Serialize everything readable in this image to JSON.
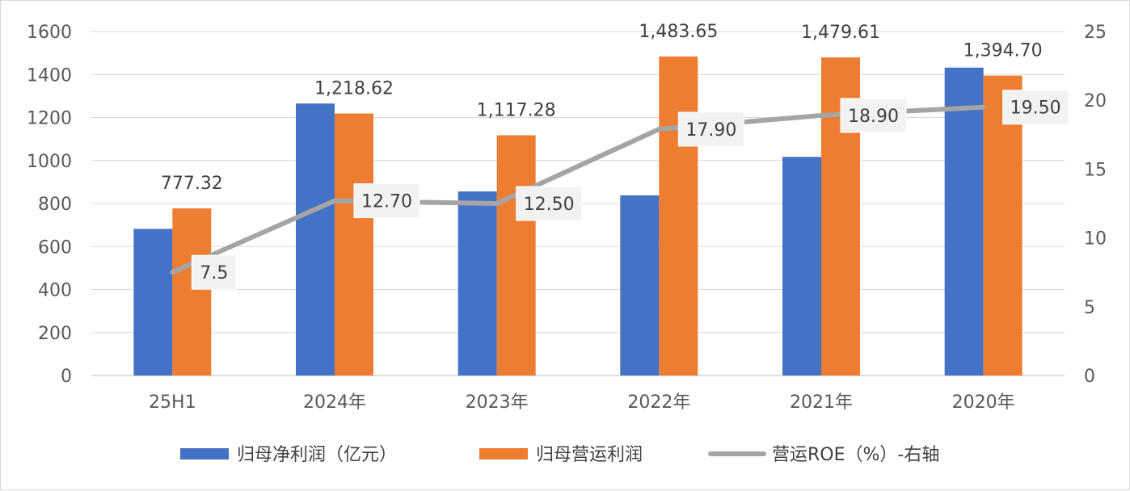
{
  "chart_data": {
    "type": "bar",
    "categories": [
      "25H1",
      "2024年",
      "2023年",
      "2022年",
      "2021年",
      "2020年"
    ],
    "series": [
      {
        "name": "归母净利润（亿元）",
        "type": "bar",
        "axis": "left",
        "color": "#4472c4",
        "values": [
          682,
          1265,
          856,
          838,
          1017,
          1432
        ]
      },
      {
        "name": "归母营运利润",
        "type": "bar",
        "axis": "left",
        "color": "#ed7d31",
        "values": [
          777.32,
          1218.62,
          1117.28,
          1483.65,
          1479.61,
          1394.7
        ],
        "labels": [
          "777.32",
          "1,218.62",
          "1,117.28",
          "1,483.65",
          "1,479.61",
          "1,394.70"
        ]
      },
      {
        "name": "营运ROE（%）-右轴",
        "type": "line",
        "axis": "right",
        "color": "#a5a5a5",
        "values": [
          7.5,
          12.7,
          12.5,
          17.9,
          18.9,
          19.5
        ],
        "labels": [
          "7.5",
          "12.70",
          "12.50",
          "17.90",
          "18.90",
          "19.50"
        ]
      }
    ],
    "y_left": {
      "min": 0,
      "max": 1600,
      "step": 200,
      "ticks": [
        "0",
        "200",
        "400",
        "600",
        "800",
        "1000",
        "1200",
        "1400",
        "1600"
      ]
    },
    "y_right": {
      "min": 0,
      "max": 25,
      "step": 5,
      "ticks": [
        "0",
        "5",
        "10",
        "15",
        "20",
        "25"
      ]
    },
    "grid": true,
    "legend_position": "bottom"
  }
}
